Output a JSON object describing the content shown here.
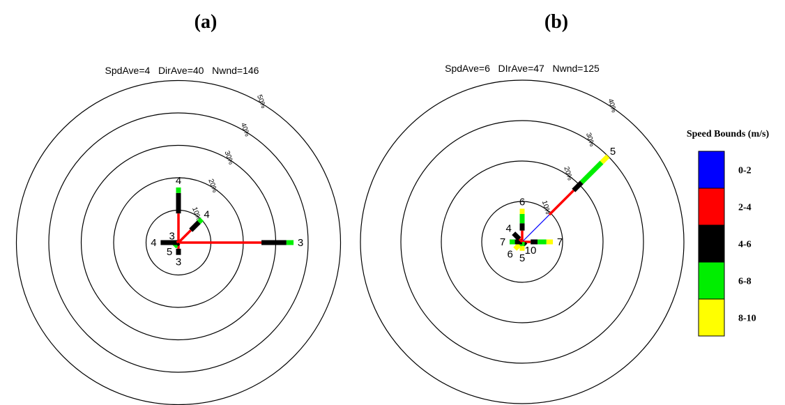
{
  "chart_data": [
    {
      "type": "windrose",
      "panel_label": "(a)",
      "stats": "SpdAve=4   DirAve=40   Nwnd=146",
      "rings": [
        10,
        20,
        30,
        40,
        50
      ],
      "ring_labels": [
        "10%",
        "20%",
        "30%",
        "40%",
        "50%"
      ],
      "petals": [
        {
          "dir": 0,
          "label": "4",
          "segments": [
            {
              "bin": "2-4",
              "pct": 9.0
            },
            {
              "bin": "4-6",
              "pct": 6.3
            },
            {
              "bin": "6-8",
              "pct": 1.7
            }
          ]
        },
        {
          "dir": 45,
          "label": "4",
          "segments": [
            {
              "bin": "2-4",
              "pct": 5.4
            },
            {
              "bin": "4-6",
              "pct": 3.5
            },
            {
              "bin": "6-8",
              "pct": 1.3
            }
          ]
        },
        {
          "dir": 90,
          "label": "3",
          "segments": [
            {
              "bin": "2-4",
              "pct": 25.6
            },
            {
              "bin": "4-6",
              "pct": 7.7
            },
            {
              "bin": "6-8",
              "pct": 2.2
            }
          ]
        },
        {
          "dir": 180,
          "label": "3",
          "segments": [
            {
              "bin": "2-4",
              "pct": 1.9
            },
            {
              "bin": "4-6",
              "pct": 1.9
            }
          ]
        },
        {
          "dir": 225,
          "label": "5",
          "segments": [
            {
              "bin": "4-6",
              "pct": 0.9
            },
            {
              "bin": "6-8",
              "pct": 0.9
            }
          ]
        },
        {
          "dir": 270,
          "label": "4",
          "segments": [
            {
              "bin": "4-6",
              "pct": 5.5
            }
          ]
        },
        {
          "dir": 315,
          "label": "3",
          "segments": [
            {
              "bin": "2-4",
              "pct": 0.7
            }
          ]
        }
      ]
    },
    {
      "type": "windrose",
      "panel_label": "(b)",
      "stats": "SpdAve=6   DIrAve=47   Nwnd=125",
      "rings": [
        10,
        20,
        30,
        40
      ],
      "ring_labels": [
        "10%",
        "20%",
        "30%",
        "40%"
      ],
      "petals": [
        {
          "dir": 0,
          "label": "6",
          "segments": [
            {
              "bin": "2-4",
              "pct": 2.8
            },
            {
              "bin": "4-6",
              "pct": 1.8
            },
            {
              "bin": "6-8",
              "pct": 2.3
            },
            {
              "bin": "8-10",
              "pct": 1.3
            }
          ]
        },
        {
          "dir": 45,
          "label": "5",
          "segments": [
            {
              "bin": "0-2",
              "pct": 9.5
            },
            {
              "bin": "2-4",
              "pct": 8.5
            },
            {
              "bin": "4-6",
              "pct": 2.8
            },
            {
              "bin": "6-8",
              "pct": 7.0
            },
            {
              "bin": "8-10",
              "pct": 2.2
            }
          ]
        },
        {
          "dir": 90,
          "label": "7",
          "segments": [
            {
              "bin": "2-4",
              "pct": 2.1
            },
            {
              "bin": "4-6",
              "pct": 1.7
            },
            {
              "bin": "6-8",
              "pct": 2.2
            },
            {
              "bin": "8-10",
              "pct": 1.6
            }
          ]
        },
        {
          "dir": 135,
          "label": "10",
          "segments": [
            {
              "bin": "2-4",
              "pct": 0.6
            },
            {
              "bin": "4-6",
              "pct": 0.6
            }
          ]
        },
        {
          "dir": 180,
          "label": "5",
          "segments": [
            {
              "bin": "6-8",
              "pct": 1.0
            },
            {
              "bin": "8-10",
              "pct": 1.2
            }
          ]
        },
        {
          "dir": 225,
          "label": "6",
          "segments": [
            {
              "bin": "6-8",
              "pct": 1.0
            },
            {
              "bin": "8-10",
              "pct": 1.5
            }
          ]
        },
        {
          "dir": 270,
          "label": "7",
          "segments": [
            {
              "bin": "4-6",
              "pct": 1.8
            },
            {
              "bin": "6-8",
              "pct": 1.3
            }
          ]
        },
        {
          "dir": 315,
          "label": "4",
          "segments": [
            {
              "bin": "2-4",
              "pct": 1.0
            },
            {
              "bin": "4-6",
              "pct": 2.0
            }
          ]
        }
      ]
    }
  ],
  "legend": {
    "title": "Speed Bounds (m/s)",
    "items": [
      {
        "label": "0-2",
        "color": "#0000ff"
      },
      {
        "label": "2-4",
        "color": "#ff0000"
      },
      {
        "label": "4-6",
        "color": "#000000"
      },
      {
        "label": "6-8",
        "color": "#00ee00"
      },
      {
        "label": "8-10",
        "color": "#ffff00"
      }
    ]
  }
}
